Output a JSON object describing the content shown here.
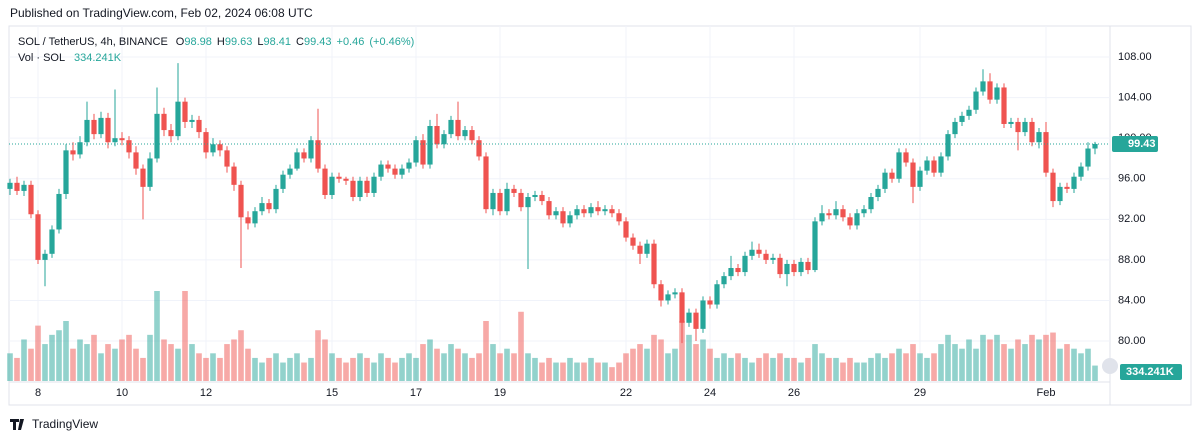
{
  "header": {
    "published": "Published on TradingView.com, Feb 02, 2024 06:08 UTC",
    "footer": "TradingView"
  },
  "chart_data": {
    "type": "candlestick",
    "symbol": "SOL / TetherUS, 4h, BINANCE",
    "legend_letters": [
      "O",
      "H",
      "L",
      "C"
    ],
    "change": "+0.46",
    "change_percent": "(+0.46%)",
    "volume_title": "Vol · SOL",
    "volume_last_label": "334.241K",
    "up_color": "#26a69a",
    "down_color": "#ef5350",
    "grid": true,
    "ylim": [
      76.06,
      111.06
    ],
    "yticks": [
      {
        "value": 80,
        "label": "80.00"
      },
      {
        "value": 84,
        "label": "84.00"
      },
      {
        "value": 88,
        "label": "88.00"
      },
      {
        "value": 92,
        "label": "92.00"
      },
      {
        "value": 96,
        "label": "96.00"
      },
      {
        "value": 100,
        "label": "100.00"
      },
      {
        "value": 104,
        "label": "104.00"
      },
      {
        "value": 108,
        "label": "108.00"
      }
    ],
    "categories": [
      null,
      null,
      null,
      null,
      "8",
      null,
      null,
      null,
      null,
      null,
      null,
      null,
      null,
      null,
      null,
      null,
      "10",
      null,
      null,
      null,
      null,
      null,
      null,
      null,
      null,
      null,
      null,
      null,
      "12",
      null,
      null,
      null,
      null,
      null,
      null,
      null,
      null,
      null,
      null,
      null,
      null,
      null,
      null,
      null,
      null,
      null,
      "15",
      null,
      null,
      null,
      null,
      null,
      null,
      null,
      null,
      null,
      null,
      null,
      "17",
      null,
      null,
      null,
      null,
      null,
      null,
      null,
      null,
      null,
      null,
      null,
      "19",
      null,
      null,
      null,
      null,
      null,
      null,
      null,
      null,
      null,
      null,
      null,
      null,
      null,
      null,
      null,
      null,
      null,
      "22",
      null,
      null,
      null,
      null,
      null,
      null,
      null,
      null,
      null,
      null,
      null,
      "24",
      null,
      null,
      null,
      null,
      null,
      null,
      null,
      null,
      null,
      null,
      null,
      "26",
      null,
      null,
      null,
      null,
      null,
      null,
      null,
      null,
      null,
      null,
      null,
      null,
      null,
      null,
      null,
      null,
      null,
      "29",
      null,
      null,
      null,
      null,
      null,
      null,
      null,
      null,
      null,
      null,
      null,
      null,
      null,
      null,
      null,
      null,
      null,
      "Feb",
      null,
      null,
      null,
      null,
      null,
      null,
      null
    ],
    "open": [
      95.0,
      95.6,
      94.8,
      95.4,
      92.5,
      88.0,
      88.6,
      91.0,
      94.5,
      98.8,
      98.4,
      99.6,
      101.8,
      100.4,
      102.0,
      99.6,
      100.0,
      99.8,
      98.6,
      97.0,
      95.2,
      98.0,
      102.4,
      100.8,
      100.2,
      103.6,
      101.6,
      101.8,
      100.6,
      98.6,
      99.4,
      98.8,
      97.2,
      95.4,
      92.2,
      91.6,
      92.8,
      93.6,
      93.0,
      95.0,
      96.4,
      97.0,
      98.6,
      98.0,
      99.8,
      97.0,
      94.4,
      96.2,
      96.0,
      95.8,
      94.2,
      95.8,
      94.6,
      96.2,
      97.4,
      97.0,
      96.4,
      97.0,
      97.6,
      99.8,
      97.4,
      101.2,
      99.4,
      100.4,
      101.8,
      100.2,
      100.8,
      99.8,
      98.2,
      93.0,
      94.6,
      92.8,
      95.0,
      94.6,
      93.2,
      94.2,
      94.4,
      93.8,
      92.4,
      92.8,
      91.6,
      92.4,
      93.0,
      92.6,
      93.2,
      92.8,
      93.0,
      92.6,
      91.8,
      90.2,
      89.4,
      88.6,
      89.6,
      85.6,
      84.0,
      84.6,
      84.8,
      81.8,
      82.8,
      81.2,
      84.0,
      83.6,
      85.6,
      86.4,
      87.2,
      86.8,
      88.4,
      89.0,
      88.6,
      88.0,
      88.2,
      86.6,
      87.6,
      86.8,
      87.8,
      87.0,
      91.8,
      92.6,
      92.4,
      93.0,
      92.2,
      91.4,
      92.6,
      93.0,
      94.2,
      95.0,
      96.6,
      96.0,
      98.6,
      97.6,
      95.2,
      96.8,
      97.8,
      96.6,
      98.2,
      100.4,
      101.6,
      102.2,
      102.8,
      104.6,
      105.6,
      103.8,
      105.0,
      101.4,
      101.6,
      100.6,
      101.6,
      99.6,
      100.6,
      96.6,
      93.8,
      95.2,
      95.0,
      96.2,
      97.2,
      98.98
    ],
    "high": [
      96.0,
      96.2,
      95.8,
      95.8,
      92.9,
      89.0,
      91.4,
      95.0,
      99.4,
      99.6,
      100.2,
      103.6,
      102.4,
      102.6,
      102.5,
      104.8,
      100.6,
      100.2,
      99.2,
      97.4,
      98.6,
      105.0,
      103.0,
      101.4,
      107.4,
      104.0,
      102.3,
      102.2,
      101.0,
      100.0,
      99.8,
      99.2,
      97.6,
      95.8,
      92.8,
      93.2,
      94.2,
      94.0,
      95.4,
      96.8,
      97.4,
      99.0,
      99.0,
      100.2,
      102.9,
      97.4,
      96.6,
      96.6,
      96.2,
      96.2,
      96.2,
      96.2,
      96.6,
      97.8,
      97.8,
      97.4,
      97.4,
      98.0,
      100.2,
      100.4,
      101.8,
      102.4,
      100.8,
      102.2,
      103.6,
      101.2,
      101.2,
      100.2,
      98.6,
      95.0,
      95.0,
      95.6,
      95.4,
      95.0,
      94.6,
      94.8,
      94.8,
      94.2,
      93.2,
      93.2,
      92.8,
      93.4,
      93.4,
      93.6,
      93.8,
      93.4,
      93.4,
      93.0,
      92.2,
      90.6,
      89.8,
      90.0,
      90.0,
      86.0,
      85.0,
      85.2,
      85.2,
      83.2,
      83.2,
      84.4,
      84.4,
      86.0,
      86.8,
      88.4,
      87.6,
      88.8,
      89.8,
      89.6,
      89.0,
      88.6,
      88.6,
      88.0,
      88.0,
      88.2,
      88.2,
      92.2,
      93.4,
      93.0,
      93.8,
      93.4,
      92.6,
      93.0,
      93.4,
      94.6,
      95.4,
      97.0,
      97.0,
      99.0,
      99.0,
      98.0,
      97.2,
      98.2,
      98.2,
      98.6,
      100.8,
      102.0,
      102.6,
      103.2,
      105.0,
      106.8,
      106.4,
      105.4,
      105.4,
      102.0,
      102.0,
      102.0,
      102.0,
      101.0,
      101.6,
      97.0,
      95.6,
      95.6,
      96.6,
      97.6,
      99.6,
      99.63
    ],
    "low": [
      94.4,
      94.4,
      94.3,
      92.1,
      87.6,
      85.4,
      88.2,
      90.6,
      94.0,
      97.8,
      98.0,
      99.2,
      99.9,
      100.0,
      99.0,
      99.2,
      99.3,
      98.0,
      96.4,
      92.0,
      94.8,
      97.6,
      100.2,
      99.6,
      99.8,
      101.0,
      101.0,
      100.0,
      98.0,
      98.2,
      98.2,
      96.6,
      94.8,
      87.2,
      91.0,
      91.2,
      92.4,
      92.6,
      92.6,
      94.6,
      96.0,
      96.8,
      97.6,
      97.6,
      96.6,
      94.0,
      94.0,
      95.6,
      95.4,
      93.8,
      93.8,
      94.2,
      94.2,
      95.8,
      96.6,
      96.0,
      96.0,
      96.6,
      97.2,
      97.0,
      97.0,
      99.0,
      99.0,
      100.0,
      99.8,
      99.8,
      99.4,
      97.8,
      92.6,
      92.4,
      92.4,
      92.4,
      94.2,
      92.8,
      87.1,
      93.8,
      93.4,
      92.0,
      92.0,
      91.2,
      91.2,
      92.0,
      92.2,
      92.2,
      92.4,
      92.4,
      92.2,
      91.4,
      89.8,
      89.0,
      87.6,
      88.2,
      85.2,
      83.4,
      83.6,
      84.2,
      79.8,
      81.4,
      80.0,
      80.8,
      83.2,
      83.2,
      85.2,
      86.0,
      86.4,
      86.4,
      88.0,
      88.2,
      87.6,
      87.6,
      86.2,
      85.4,
      86.4,
      86.4,
      86.6,
      86.8,
      91.4,
      92.0,
      92.0,
      91.8,
      91.0,
      91.0,
      92.2,
      92.6,
      93.8,
      94.6,
      95.6,
      95.6,
      97.2,
      93.6,
      94.8,
      96.4,
      96.2,
      96.2,
      97.8,
      100.0,
      101.2,
      101.8,
      102.4,
      104.2,
      103.4,
      103.4,
      101.0,
      101.0,
      98.8,
      100.2,
      99.2,
      99.0,
      96.2,
      93.2,
      93.4,
      94.6,
      94.6,
      95.8,
      96.8,
      98.41
    ],
    "close": [
      95.6,
      94.8,
      95.4,
      92.5,
      88.0,
      88.6,
      91.0,
      94.5,
      98.8,
      98.4,
      99.6,
      101.8,
      100.4,
      102.0,
      99.6,
      100.0,
      99.8,
      98.6,
      97.0,
      95.2,
      98.0,
      102.4,
      100.8,
      100.2,
      103.6,
      101.6,
      101.8,
      100.6,
      98.6,
      99.4,
      98.8,
      97.2,
      95.4,
      92.2,
      91.6,
      92.8,
      93.6,
      93.0,
      95.0,
      96.4,
      97.0,
      98.6,
      98.0,
      99.8,
      97.0,
      94.4,
      96.2,
      96.0,
      95.8,
      94.2,
      95.8,
      94.6,
      96.2,
      97.4,
      97.0,
      96.4,
      97.0,
      97.6,
      99.8,
      97.4,
      101.2,
      99.4,
      100.4,
      101.8,
      100.2,
      100.8,
      99.8,
      98.2,
      93.0,
      94.6,
      92.8,
      95.0,
      94.6,
      93.2,
      94.2,
      94.4,
      93.8,
      92.4,
      92.8,
      91.6,
      92.4,
      93.0,
      92.6,
      93.2,
      92.8,
      93.0,
      92.6,
      91.8,
      90.2,
      89.4,
      88.6,
      89.6,
      85.6,
      84.0,
      84.6,
      84.8,
      81.8,
      82.8,
      81.2,
      84.0,
      83.6,
      85.6,
      86.4,
      87.2,
      86.8,
      88.4,
      89.0,
      88.6,
      88.0,
      88.2,
      86.6,
      87.6,
      86.8,
      87.8,
      87.0,
      91.8,
      92.6,
      92.4,
      93.0,
      92.2,
      91.4,
      92.6,
      93.0,
      94.2,
      95.0,
      96.6,
      96.0,
      98.6,
      97.6,
      95.2,
      96.8,
      97.8,
      96.6,
      98.2,
      100.4,
      101.6,
      102.2,
      102.8,
      104.6,
      105.6,
      103.8,
      105.0,
      101.4,
      101.6,
      100.6,
      101.6,
      99.6,
      100.6,
      96.6,
      93.8,
      95.2,
      95.0,
      96.2,
      97.2,
      98.98,
      99.43
    ],
    "volume": [
      600000,
      500000,
      900000,
      700000,
      1200000,
      800000,
      1000000,
      1100000,
      1300000,
      700000,
      900000,
      800000,
      1000000,
      600000,
      800000,
      700000,
      900000,
      1000000,
      700000,
      500000,
      1000000,
      1950000,
      900000,
      800000,
      700000,
      1950000,
      800000,
      600000,
      500000,
      600000,
      500000,
      800000,
      900000,
      1100000,
      700000,
      500000,
      400000,
      500000,
      600000,
      400000,
      500000,
      600000,
      400000,
      500000,
      1100000,
      900000,
      600000,
      500000,
      400000,
      500000,
      600000,
      500000,
      400000,
      600000,
      500000,
      400000,
      500000,
      600000,
      500000,
      800000,
      900000,
      700000,
      600000,
      800000,
      700000,
      600000,
      500000,
      600000,
      1300000,
      800000,
      600000,
      700000,
      600000,
      1500000,
      600000,
      500000,
      400000,
      500000,
      400000,
      400000,
      500000,
      400000,
      400000,
      500000,
      400000,
      400000,
      300000,
      400000,
      600000,
      700000,
      800000,
      700000,
      1000000,
      900000,
      600000,
      700000,
      1300000,
      1000000,
      800000,
      900000,
      700000,
      500000,
      600000,
      500000,
      600000,
      500000,
      400000,
      500000,
      600000,
      500000,
      600000,
      500000,
      500000,
      400000,
      500000,
      800000,
      600000,
      500000,
      500000,
      400000,
      500000,
      400000,
      400000,
      500000,
      600000,
      500000,
      600000,
      700000,
      600000,
      800000,
      600000,
      500000,
      600000,
      800000,
      1000000,
      800000,
      700000,
      900000,
      700000,
      1000000,
      900000,
      1000000,
      800000,
      700000,
      900000,
      800000,
      1000000,
      900000,
      1000000,
      1050000,
      700000,
      800000,
      700000,
      600000,
      700000,
      334241
    ]
  }
}
